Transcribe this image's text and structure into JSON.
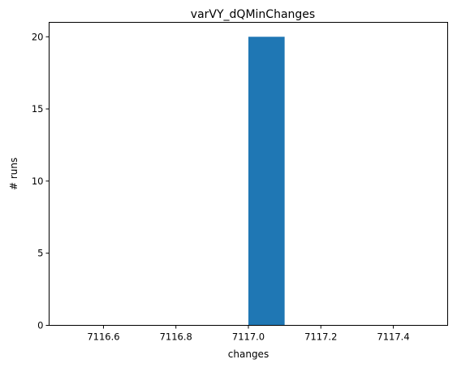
{
  "chart_data": {
    "type": "bar",
    "title": "varVY_dQMinChanges",
    "xlabel": "changes",
    "ylabel": "# runs",
    "xlim": [
      7116.45,
      7117.55
    ],
    "ylim": [
      0,
      21
    ],
    "x_ticks": [
      7116.6,
      7116.8,
      7117.0,
      7117.2,
      7117.4
    ],
    "x_tick_labels": [
      "7116.6",
      "7116.8",
      "7117.0",
      "7117.2",
      "7117.4"
    ],
    "y_ticks": [
      0,
      5,
      10,
      15,
      20
    ],
    "y_tick_labels": [
      "0",
      "5",
      "10",
      "15",
      "20"
    ],
    "bins": [
      {
        "x0": 7117.0,
        "x1": 7117.1,
        "value": 20
      }
    ],
    "bar_color": "#1f77b4",
    "grid": false,
    "legend": "none"
  }
}
